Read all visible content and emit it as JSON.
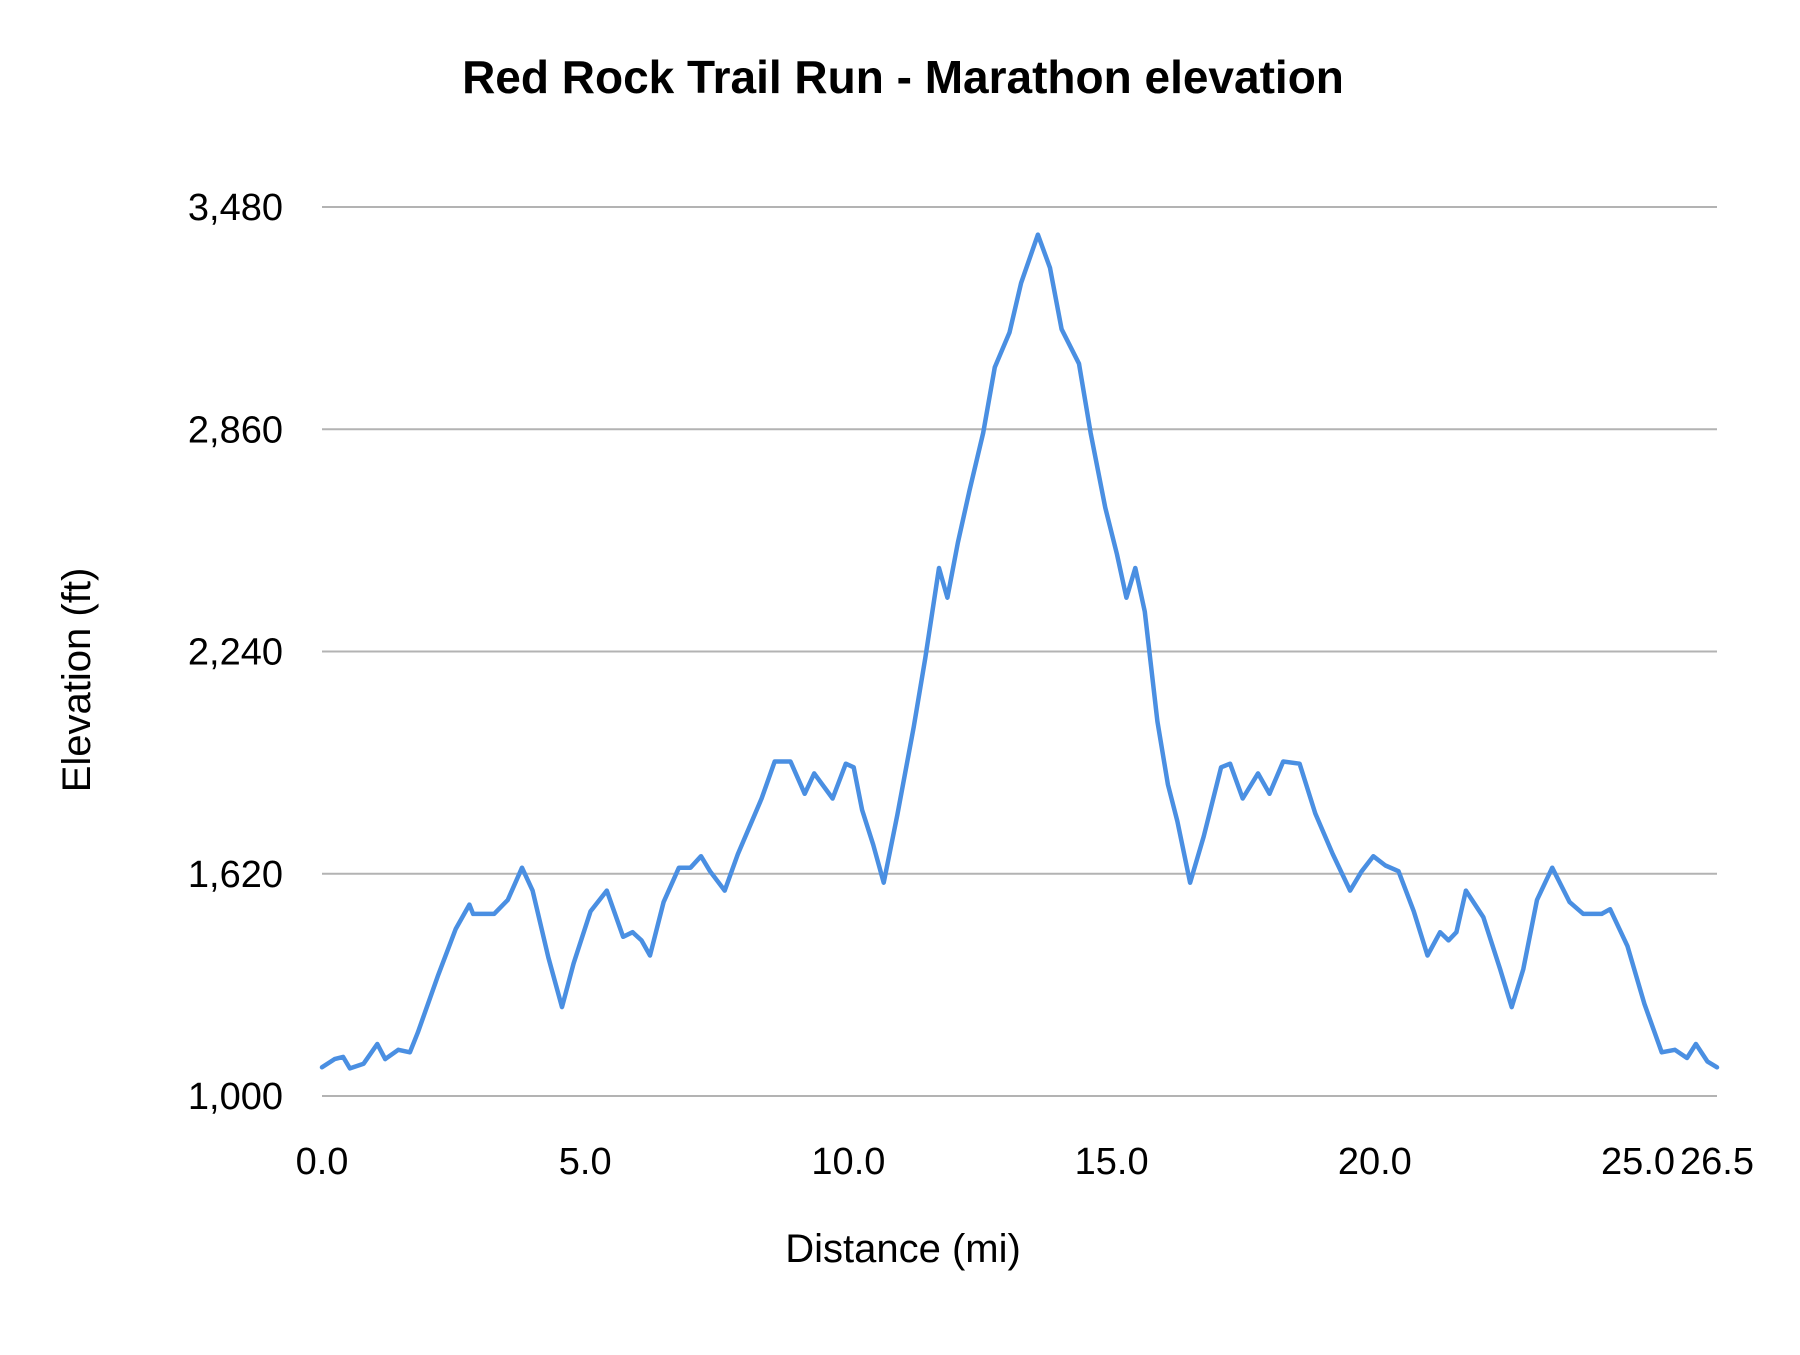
{
  "chart_data": {
    "type": "line",
    "title": "Red Rock Trail Run - Marathon elevation",
    "xlabel": "Distance (mi)",
    "ylabel": "Elevation (ft)",
    "xlim": [
      0,
      26.5
    ],
    "ylim": [
      1000,
      3480
    ],
    "x_ticks": [
      "0.0",
      "5.0",
      "10.0",
      "15.0",
      "20.0",
      "25.0",
      "26.5"
    ],
    "x_tick_values": [
      0,
      5,
      10,
      15,
      20,
      25,
      26.5
    ],
    "y_ticks": [
      "1,000",
      "1,620",
      "2,240",
      "2,860",
      "3,480"
    ],
    "y_tick_values": [
      1000,
      1620,
      2240,
      2860,
      3480
    ],
    "grid": "horizontal",
    "legend": "none",
    "colors": {
      "line": "#4a8fe2",
      "grid": "#b3b3b3"
    },
    "series": [
      {
        "x": [
          0,
          0.24,
          0.4,
          0.53,
          0.79,
          1.05,
          1.2,
          1.45,
          1.67,
          1.82,
          2.21,
          2.54,
          2.8,
          2.87,
          3.27,
          3.53,
          3.8,
          4.0,
          4.3,
          4.56,
          4.78,
          5.1,
          5.41,
          5.72,
          5.9,
          6.07,
          6.23,
          6.49,
          6.78,
          7.0,
          7.2,
          7.37,
          7.65,
          7.9,
          8.35,
          8.6,
          8.9,
          9.17,
          9.35,
          9.7,
          9.95,
          10.1,
          10.26,
          10.47,
          10.67,
          10.93,
          11.24,
          11.46,
          11.72,
          11.88,
          12.08,
          12.3,
          12.56,
          12.78,
          13.06,
          13.28,
          13.6,
          13.83,
          14.05,
          14.38,
          14.6,
          14.88,
          15.1,
          15.28,
          15.45,
          15.63,
          15.87,
          16.07,
          16.25,
          16.49,
          16.75,
          17.08,
          17.25,
          17.49,
          17.78,
          18.0,
          18.26,
          18.57,
          18.87,
          19.2,
          19.53,
          19.75,
          19.97,
          20.2,
          20.45,
          20.74,
          21.0,
          21.24,
          21.4,
          21.55,
          21.73,
          22.06,
          22.38,
          22.6,
          22.82,
          23.08,
          23.37,
          23.7,
          23.96,
          24.31,
          24.47,
          24.8,
          25.12,
          25.45,
          25.7,
          25.93,
          26.1,
          26.32,
          26.5
        ],
        "y": [
          1080,
          1103,
          1109,
          1077,
          1090,
          1145,
          1103,
          1129,
          1122,
          1177,
          1338,
          1466,
          1534,
          1508,
          1508,
          1547,
          1637,
          1573,
          1386,
          1248,
          1370,
          1515,
          1573,
          1444,
          1457,
          1434,
          1392,
          1541,
          1637,
          1637,
          1669,
          1627,
          1573,
          1675,
          1830,
          1933,
          1933,
          1843,
          1900,
          1830,
          1927,
          1917,
          1798,
          1701,
          1595,
          1785,
          2029,
          2222,
          2473,
          2390,
          2544,
          2689,
          2850,
          3033,
          3130,
          3268,
          3403,
          3310,
          3139,
          3043,
          2850,
          2641,
          2512,
          2390,
          2473,
          2351,
          2045,
          1869,
          1766,
          1595,
          1724,
          1917,
          1927,
          1830,
          1900,
          1843,
          1933,
          1927,
          1788,
          1675,
          1573,
          1627,
          1669,
          1643,
          1627,
          1515,
          1392,
          1457,
          1434,
          1457,
          1573,
          1499,
          1354,
          1248,
          1354,
          1547,
          1637,
          1541,
          1508,
          1508,
          1521,
          1418,
          1257,
          1122,
          1129,
          1106,
          1145,
          1096,
          1080
        ]
      }
    ]
  }
}
